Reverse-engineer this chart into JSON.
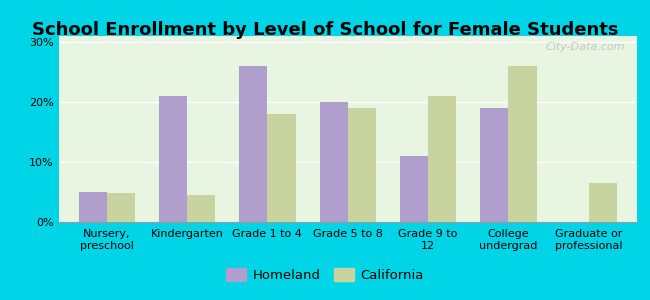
{
  "title": "School Enrollment by Level of School for Female Students",
  "categories": [
    "Nursery,\npreschool",
    "Kindergarten",
    "Grade 1 to 4",
    "Grade 5 to 8",
    "Grade 9 to\n12",
    "College\nundergrad",
    "Graduate or\nprofessional"
  ],
  "homeland": [
    5.0,
    21.0,
    26.0,
    20.0,
    11.0,
    19.0,
    0.0
  ],
  "california": [
    4.8,
    4.5,
    18.0,
    19.0,
    21.0,
    26.0,
    6.5
  ],
  "homeland_color": "#b09fcc",
  "california_color": "#c8d4a0",
  "background_outer": "#00d5e8",
  "background_plot": "#e8f5e0",
  "yticks": [
    0,
    10,
    20,
    30
  ],
  "ylim": [
    0,
    31
  ],
  "bar_width": 0.35,
  "title_fontsize": 13,
  "tick_fontsize": 8.0,
  "legend_fontsize": 9.5,
  "watermark": "City-Data.com"
}
